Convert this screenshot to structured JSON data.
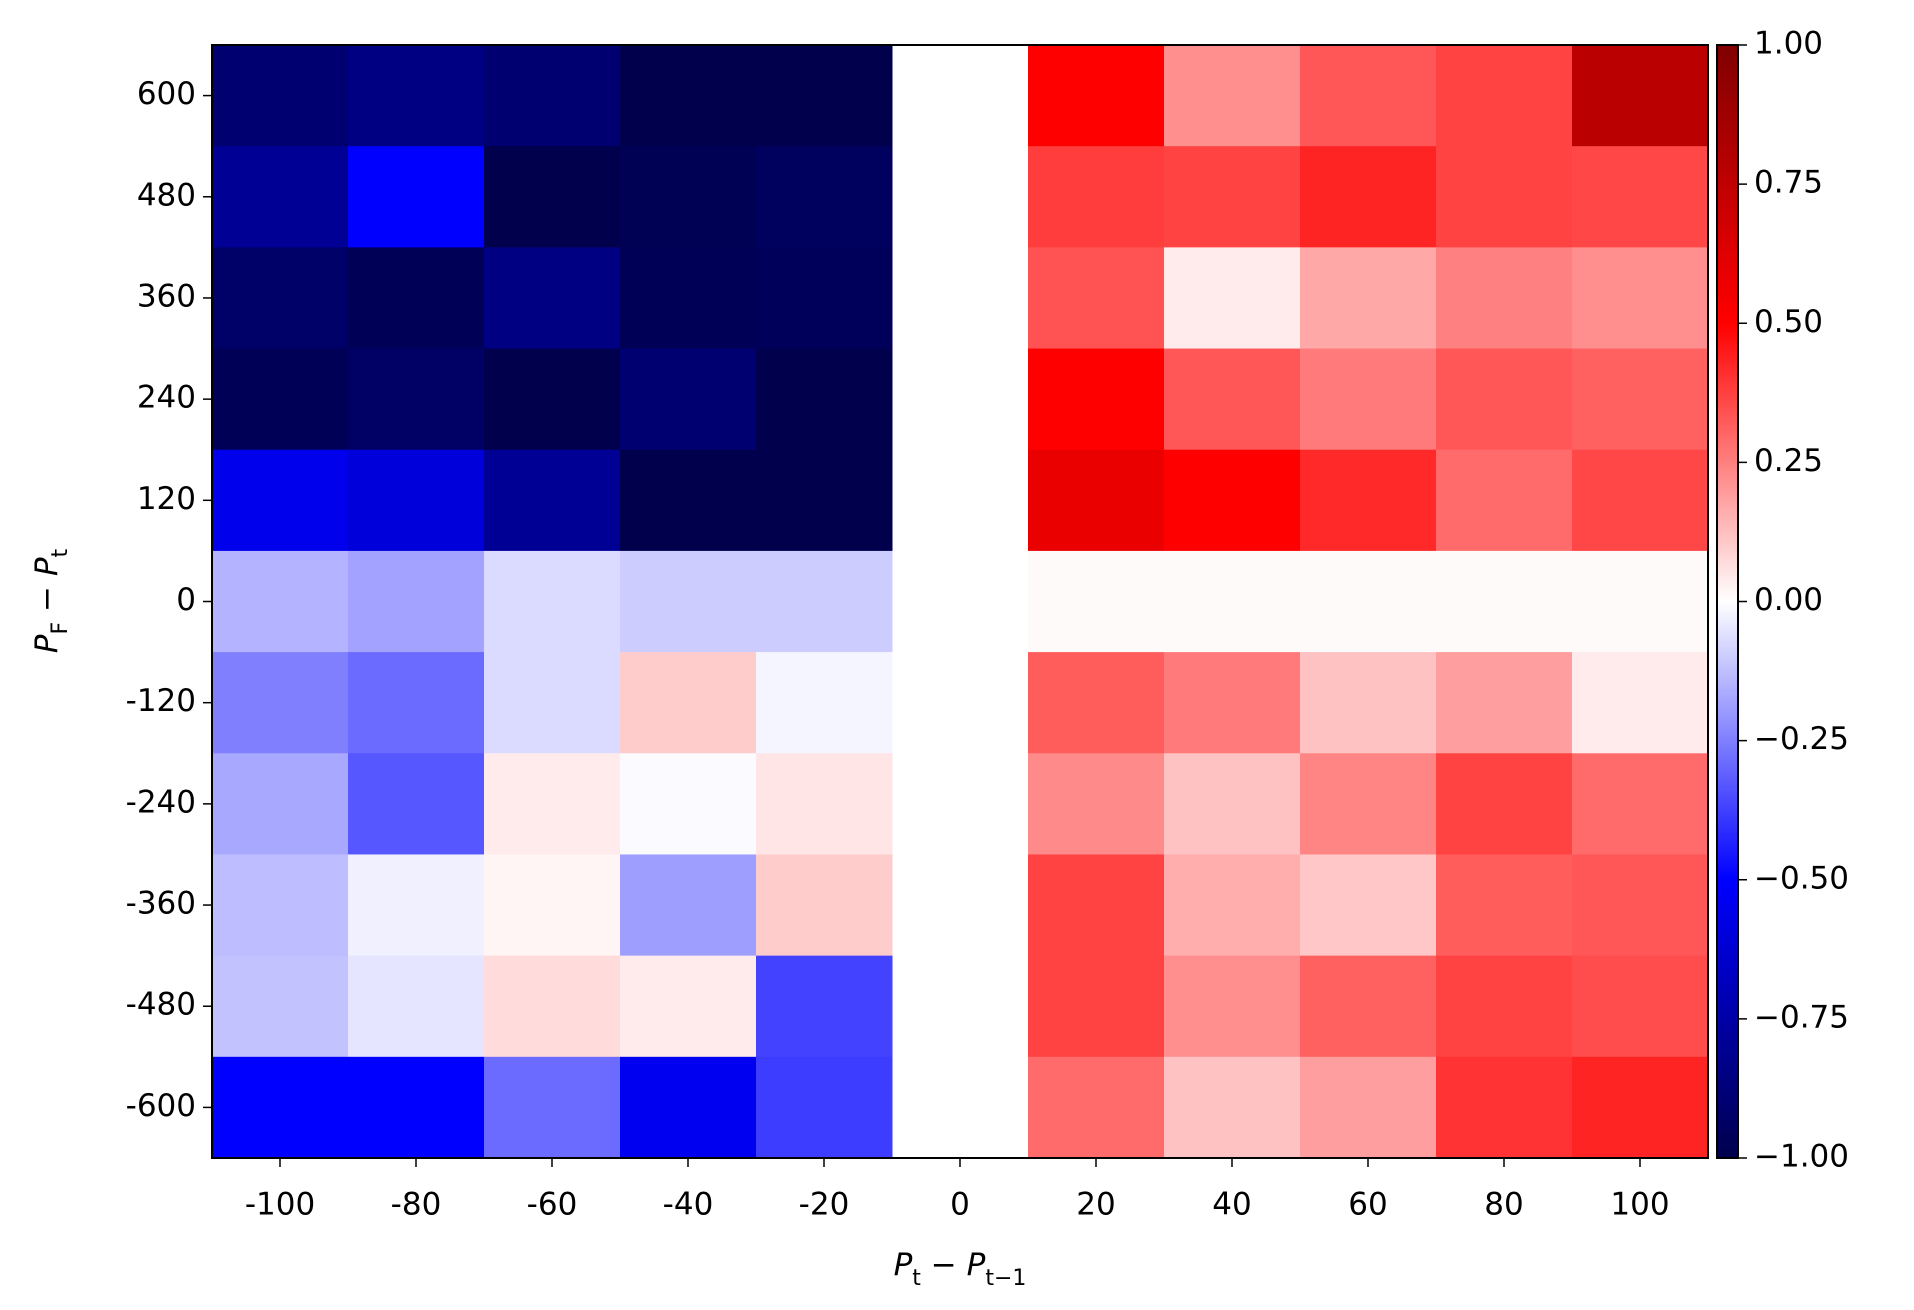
{
  "chart_data": {
    "type": "heatmap",
    "xlabel": "P_t − P_{t−1}",
    "ylabel": "P_F − P_t",
    "x": [
      -100,
      -80,
      -60,
      -40,
      -20,
      0,
      20,
      40,
      60,
      80,
      100
    ],
    "y": [
      600,
      480,
      360,
      240,
      120,
      0,
      -120,
      -240,
      -360,
      -480,
      -600
    ],
    "values": [
      [
        -0.9,
        -0.85,
        -0.9,
        -1,
        -1,
        null,
        0.5,
        0.22,
        0.33,
        0.37,
        0.77
      ],
      [
        -0.8,
        -0.5,
        -1,
        -0.98,
        -0.95,
        null,
        0.38,
        0.37,
        0.43,
        0.37,
        0.36
      ],
      [
        -0.92,
        -0.97,
        -0.85,
        -0.97,
        -0.96,
        null,
        0.34,
        0.04,
        0.17,
        0.25,
        0.22
      ],
      [
        -0.97,
        -0.93,
        -1,
        -0.9,
        -1,
        null,
        0.5,
        0.33,
        0.26,
        0.33,
        0.31
      ],
      [
        -0.55,
        -0.6,
        -0.8,
        -1,
        -1,
        null,
        0.58,
        0.5,
        0.42,
        0.29,
        0.36
      ],
      [
        -0.15,
        -0.18,
        -0.07,
        -0.1,
        -0.1,
        null,
        0.01,
        0.01,
        0.01,
        0.01,
        0.01
      ],
      [
        -0.25,
        -0.29,
        -0.07,
        0.1,
        -0.02,
        null,
        0.32,
        0.26,
        0.12,
        0.19,
        0.04
      ],
      [
        -0.17,
        -0.33,
        0.04,
        -0.01,
        0.05,
        null,
        0.23,
        0.12,
        0.24,
        0.37,
        0.29
      ],
      [
        -0.13,
        -0.03,
        0.02,
        -0.19,
        0.1,
        null,
        0.37,
        0.16,
        0.11,
        0.32,
        0.33
      ],
      [
        -0.12,
        -0.05,
        0.07,
        0.04,
        -0.37,
        null,
        0.37,
        0.22,
        0.31,
        0.37,
        0.35
      ],
      [
        -0.5,
        -0.5,
        -0.29,
        -0.54,
        -0.38,
        null,
        0.29,
        0.12,
        0.19,
        0.4,
        0.43
      ]
    ],
    "xlim": [
      -110,
      110
    ],
    "ylim": [
      -660,
      660
    ],
    "xticks": [
      -100,
      -80,
      -60,
      -40,
      -20,
      0,
      20,
      40,
      60,
      80,
      100
    ],
    "yticks": [
      600,
      480,
      360,
      240,
      120,
      0,
      -120,
      -240,
      -360,
      -480,
      -600
    ],
    "colormap": "seismic",
    "clim": [
      -1,
      1
    ],
    "cticks": [
      {
        "value": 1,
        "label": "1.00"
      },
      {
        "value": 0.75,
        "label": "0.75"
      },
      {
        "value": 0.5,
        "label": "0.50"
      },
      {
        "value": 0.25,
        "label": "0.25"
      },
      {
        "value": 0,
        "label": "0.00"
      },
      {
        "value": -0.25,
        "label": "−0.25"
      },
      {
        "value": -0.5,
        "label": "−0.50"
      },
      {
        "value": -0.75,
        "label": "−0.75"
      },
      {
        "value": -1,
        "label": "−1.00"
      }
    ]
  }
}
